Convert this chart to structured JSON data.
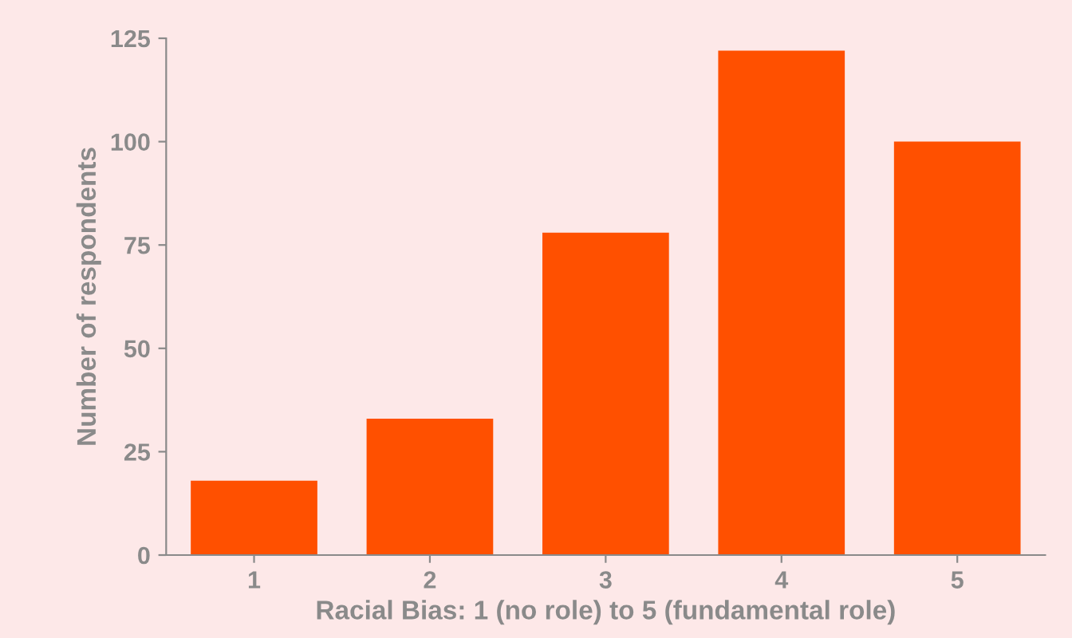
{
  "chart_data": {
    "type": "bar",
    "xlabel": "Racial Bias: 1 (no role) to 5 (fundamental role)",
    "ylabel": "Number of respondents",
    "categories": [
      "1",
      "2",
      "3",
      "4",
      "5"
    ],
    "values": [
      18,
      33,
      78,
      122,
      100
    ],
    "color": "#ff5000",
    "ylim": [
      0,
      125
    ],
    "yticks": [
      0,
      25,
      50,
      75,
      100,
      125
    ],
    "grid": false
  }
}
